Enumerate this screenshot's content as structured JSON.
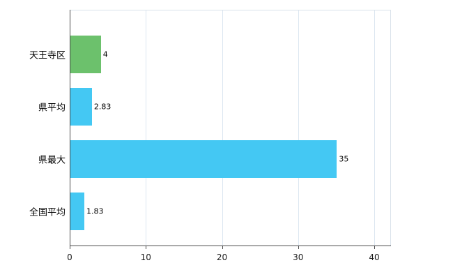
{
  "chart_data": {
    "type": "bar",
    "orientation": "horizontal",
    "title": "",
    "xlabel": "",
    "ylabel": "",
    "categories": [
      "天王寺区",
      "県平均",
      "県最大",
      "全国平均"
    ],
    "values": [
      4,
      2.83,
      35,
      1.83
    ],
    "value_labels": [
      "4",
      "2.83",
      "35",
      "1.83"
    ],
    "bar_colors": [
      "#6cc16c",
      "#44c8f3",
      "#44c8f3",
      "#44c8f3"
    ],
    "xlim": [
      0,
      40
    ],
    "xticks": [
      "0",
      "10",
      "20",
      "30",
      "40"
    ],
    "xtick_values": [
      0,
      10,
      20,
      30,
      40
    ],
    "grid": true,
    "legend": "none"
  },
  "colors": {
    "grid": "#dbe6f0",
    "plot_border": "#d9e2ea",
    "axis": "#4a4a4a",
    "text": "#000000",
    "background": "#ffffff"
  }
}
